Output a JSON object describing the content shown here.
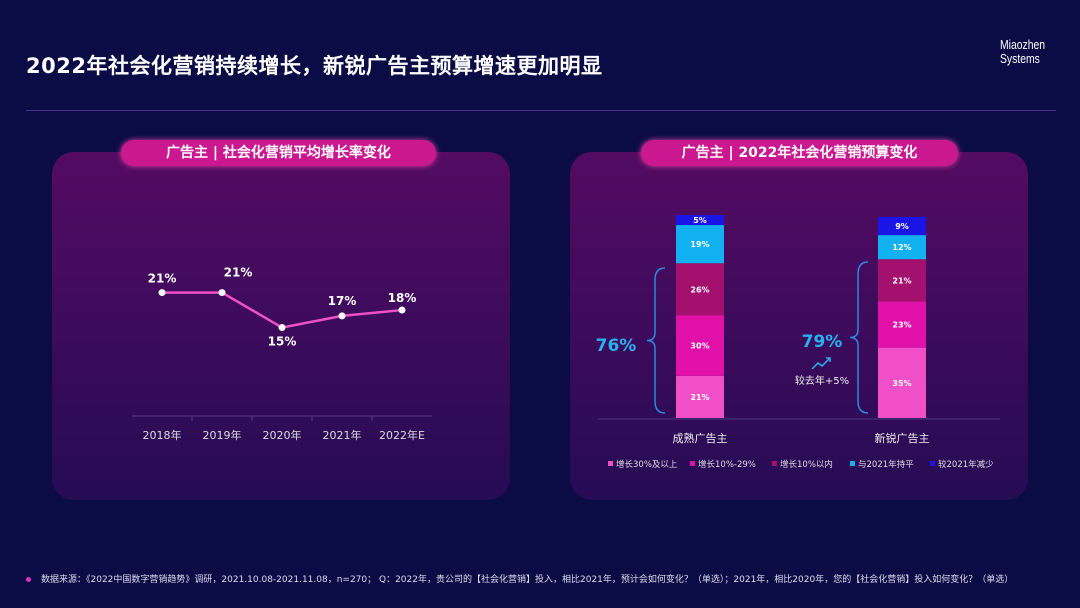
{
  "title": "2022年社会化营销持续增长，新锐广告主预算增速更加明显",
  "logo": [
    "Miaozhen",
    "Systems"
  ],
  "chart_data": [
    {
      "type": "line",
      "title": "广告主 | 社会化营销平均增长率变化",
      "categories": [
        "2018年",
        "2019年",
        "2020年",
        "2021年",
        "2022年E"
      ],
      "values": [
        21,
        21,
        15,
        17,
        18
      ],
      "labels": [
        "21%",
        "21%",
        "15%",
        "17%",
        "18%"
      ],
      "ylim": [
        0,
        25
      ],
      "color": "#f050c8"
    },
    {
      "type": "bar",
      "stacked": true,
      "title": "广告主 | 2022年社会化营销预算变化",
      "categories": [
        "成熟广告主",
        "新锐广告主"
      ],
      "series": [
        {
          "name": "增长30%及以上",
          "color": "#f04fc8",
          "values": [
            21,
            35
          ]
        },
        {
          "name": "增长10%-29%",
          "color": "#e010a8",
          "values": [
            30,
            23
          ]
        },
        {
          "name": "增长10%以内",
          "color": "#a3106e",
          "values": [
            26,
            21
          ]
        },
        {
          "name": "与2021年持平",
          "color": "#12b2f2",
          "values": [
            19,
            12
          ]
        },
        {
          "name": "较2021年减少",
          "color": "#1a14e6",
          "values": [
            5,
            9
          ]
        }
      ],
      "annotations": {
        "mature_growth": "76%",
        "new_growth": "79%",
        "new_note": "较去年+5%"
      },
      "legend": "bottom"
    }
  ],
  "source": "数据来源：《2022中国数字营销趋势》调研，2021.10.08-2021.11.08，n=270； Q：2022年，贵公司的【社会化营销】投入，相比2021年，预计会如何变化？（单选）；2021年，相比2020年，您的【社会化营销】投入如何变化？（单选）"
}
